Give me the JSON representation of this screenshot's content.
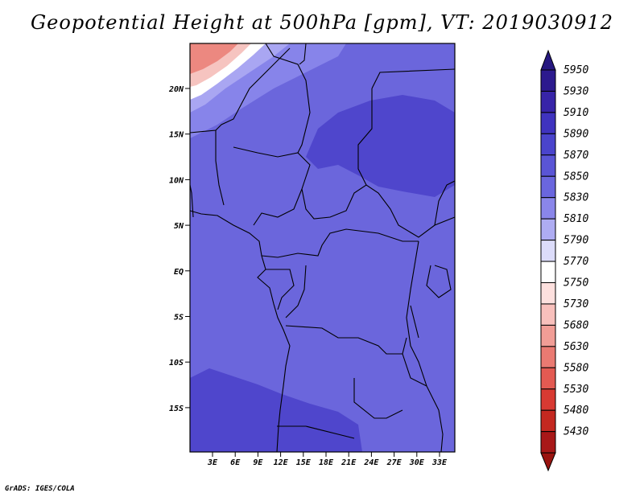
{
  "title": "Geopotential Height at 500hPa [gpm], VT: 2019030912",
  "footer": "GrADS: IGES/COLA",
  "map": {
    "lat_labels": [
      "20N",
      "15N",
      "10N",
      "5N",
      "EQ",
      "5S",
      "10S",
      "15S"
    ],
    "lon_labels": [
      "3E",
      "6E",
      "9E",
      "12E",
      "15E",
      "18E",
      "21E",
      "24E",
      "27E",
      "30E",
      "33E"
    ]
  },
  "colorbar": {
    "levels": [
      "5950",
      "5930",
      "5910",
      "5890",
      "5870",
      "5850",
      "5830",
      "5810",
      "5790",
      "5770",
      "5750",
      "5730",
      "5680",
      "5630",
      "5580",
      "5530",
      "5480",
      "5430"
    ],
    "colors": [
      "#2c1a8e",
      "#3724a8",
      "#3f33bf",
      "#4a44cc",
      "#5a55d6",
      "#6a66de",
      "#8a86ea",
      "#aeacf2",
      "#dcdcfa",
      "#ffffff",
      "#fde0de",
      "#f8c0bc",
      "#f19d96",
      "#ea7a72",
      "#e35a52",
      "#d83a32",
      "#c42820",
      "#a81818"
    ],
    "top_arrow_color": "#271880",
    "bottom_arrow_color": "#9a1410"
  },
  "fills": {
    "base": "#6b66dc",
    "dark": "#4f46cc",
    "light1": "#8784ea",
    "light2": "#a9a6f2",
    "white": "#ffffff",
    "pink": "#f6c4c0",
    "red": "#ec8880"
  }
}
